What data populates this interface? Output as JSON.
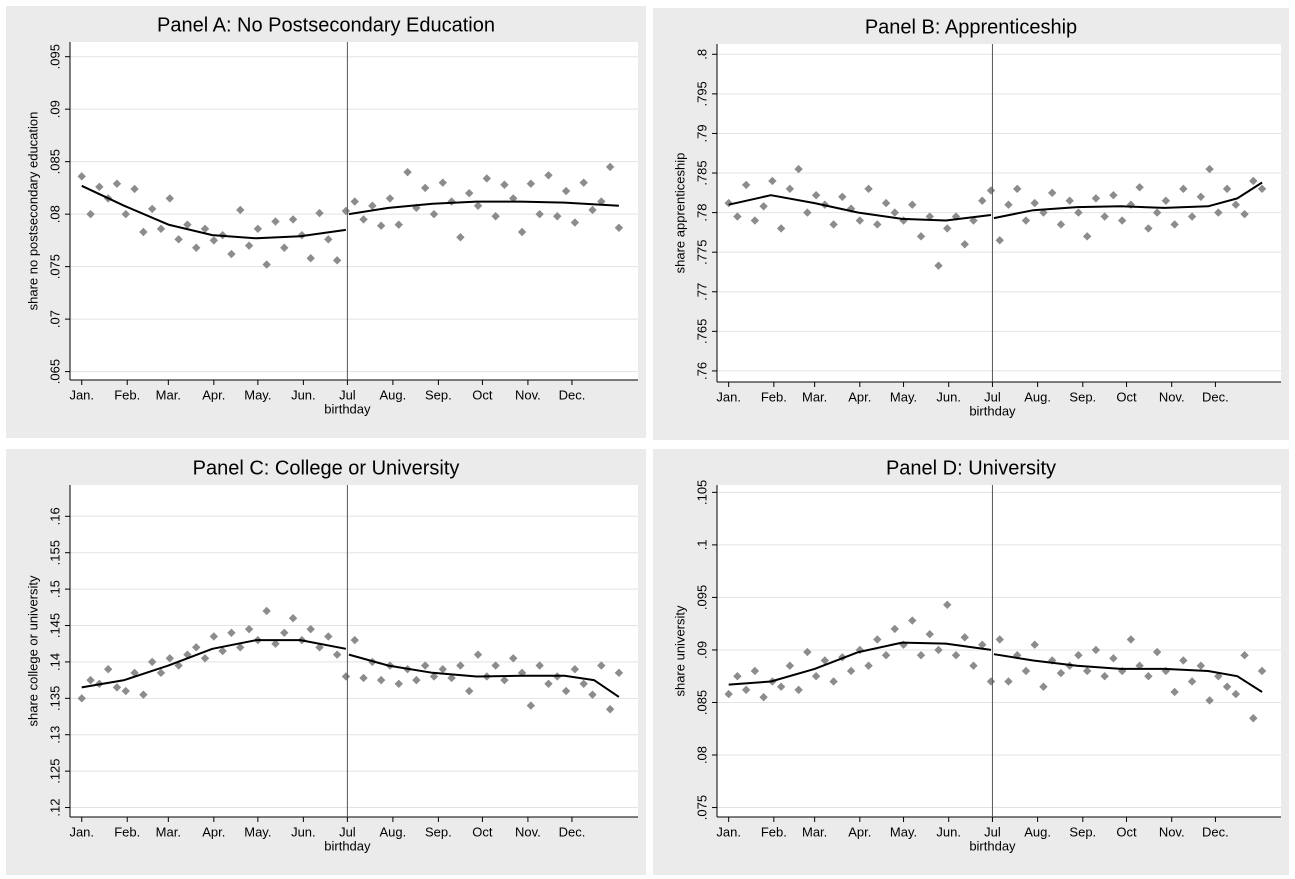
{
  "chart_data": [
    {
      "type": "scatter",
      "title": "Panel A: No Postsecondary Education",
      "x_label": "birthday",
      "y_label": "share no postsecondary education",
      "xlim": [
        -7,
        380
      ],
      "ylim": [
        0.0642,
        0.0964
      ],
      "xline": 182,
      "grid": true,
      "color": "#8c8c8c",
      "fit_color": "#000000",
      "xticks": [
        {
          "value": 1,
          "label": "Jan."
        },
        {
          "value": 32,
          "label": "Feb."
        },
        {
          "value": 60,
          "label": "Mar."
        },
        {
          "value": 91,
          "label": "Apr."
        },
        {
          "value": 121,
          "label": "May."
        },
        {
          "value": 152,
          "label": "Jun."
        },
        {
          "value": 182,
          "label": "Jul"
        },
        {
          "value": 213,
          "label": "Aug."
        },
        {
          "value": 244,
          "label": "Sep."
        },
        {
          "value": 274,
          "label": "Oct"
        },
        {
          "value": 305,
          "label": "Nov."
        },
        {
          "value": 335,
          "label": "Dec."
        }
      ],
      "yticks": [
        {
          "value": 0.065,
          "label": ".065"
        },
        {
          "value": 0.07,
          "label": ".07"
        },
        {
          "value": 0.075,
          "label": ".075"
        },
        {
          "value": 0.08,
          "label": ".08"
        },
        {
          "value": 0.085,
          "label": ".085"
        },
        {
          "value": 0.09,
          "label": ".09"
        },
        {
          "value": 0.095,
          "label": ".095"
        }
      ],
      "x": [
        1,
        7,
        13,
        19,
        25,
        31,
        37,
        43,
        49,
        55,
        61,
        67,
        73,
        79,
        85,
        91,
        97,
        103,
        109,
        115,
        121,
        127,
        133,
        139,
        145,
        151,
        157,
        163,
        169,
        175,
        181,
        187,
        193,
        199,
        205,
        211,
        217,
        223,
        229,
        235,
        241,
        247,
        253,
        259,
        265,
        271,
        277,
        283,
        289,
        295,
        301,
        307,
        313,
        319,
        325,
        331,
        337,
        343,
        349,
        355,
        361,
        367
      ],
      "values": [
        0.0836,
        0.08,
        0.0826,
        0.0815,
        0.0829,
        0.08,
        0.0824,
        0.0783,
        0.0805,
        0.0786,
        0.0815,
        0.0776,
        0.079,
        0.0768,
        0.0786,
        0.0775,
        0.078,
        0.0762,
        0.0804,
        0.077,
        0.0786,
        0.0752,
        0.0793,
        0.0768,
        0.0795,
        0.078,
        0.0758,
        0.0801,
        0.0776,
        0.0756,
        0.0803,
        0.0812,
        0.0795,
        0.0808,
        0.0789,
        0.0815,
        0.079,
        0.084,
        0.0806,
        0.0825,
        0.08,
        0.083,
        0.0812,
        0.0778,
        0.082,
        0.0808,
        0.0834,
        0.0798,
        0.0828,
        0.0815,
        0.0783,
        0.0829,
        0.08,
        0.0837,
        0.0798,
        0.0822,
        0.0792,
        0.083,
        0.0804,
        0.0812,
        0.0845,
        0.0787
      ],
      "fit_x": [
        1,
        30,
        60,
        90,
        120,
        150,
        181,
        182,
        183,
        210,
        240,
        270,
        300,
        330,
        367
      ],
      "fit_values": [
        0.0827,
        0.0808,
        0.079,
        0.078,
        0.0777,
        0.0779,
        0.0785,
        null,
        0.08,
        0.0806,
        0.081,
        0.0812,
        0.0812,
        0.0811,
        0.0808
      ]
    },
    {
      "type": "scatter",
      "title": "Panel B: Apprenticeship",
      "x_label": "birthday",
      "y_label": "share apprenticeship",
      "xlim": [
        -7,
        380
      ],
      "ylim": [
        0.7586,
        0.8013
      ],
      "xline": 182,
      "grid": true,
      "color": "#8c8c8c",
      "fit_color": "#000000",
      "xticks": [
        {
          "value": 1,
          "label": "Jan."
        },
        {
          "value": 32,
          "label": "Feb."
        },
        {
          "value": 60,
          "label": "Mar."
        },
        {
          "value": 91,
          "label": "Apr."
        },
        {
          "value": 121,
          "label": "May."
        },
        {
          "value": 152,
          "label": "Jun."
        },
        {
          "value": 182,
          "label": "Jul"
        },
        {
          "value": 213,
          "label": "Aug."
        },
        {
          "value": 244,
          "label": "Sep."
        },
        {
          "value": 274,
          "label": "Oct"
        },
        {
          "value": 305,
          "label": "Nov."
        },
        {
          "value": 335,
          "label": "Dec."
        }
      ],
      "yticks": [
        {
          "value": 0.76,
          "label": ".76"
        },
        {
          "value": 0.765,
          "label": ".765"
        },
        {
          "value": 0.77,
          "label": ".77"
        },
        {
          "value": 0.775,
          "label": ".775"
        },
        {
          "value": 0.78,
          "label": ".78"
        },
        {
          "value": 0.785,
          "label": ".785"
        },
        {
          "value": 0.79,
          "label": ".79"
        },
        {
          "value": 0.795,
          "label": ".795"
        },
        {
          "value": 0.8,
          "label": ".8"
        }
      ],
      "x": [
        1,
        7,
        13,
        19,
        25,
        31,
        37,
        43,
        49,
        55,
        61,
        67,
        73,
        79,
        85,
        91,
        97,
        103,
        109,
        115,
        121,
        127,
        133,
        139,
        145,
        151,
        157,
        163,
        169,
        175,
        181,
        187,
        193,
        199,
        205,
        211,
        217,
        223,
        229,
        235,
        241,
        247,
        253,
        259,
        265,
        271,
        277,
        283,
        289,
        295,
        301,
        307,
        313,
        319,
        325,
        331,
        337,
        343,
        349,
        355,
        361,
        367
      ],
      "values": [
        0.7812,
        0.7795,
        0.7835,
        0.779,
        0.7808,
        0.784,
        0.778,
        0.783,
        0.7855,
        0.78,
        0.7822,
        0.781,
        0.7785,
        0.782,
        0.7805,
        0.779,
        0.783,
        0.7785,
        0.7812,
        0.78,
        0.779,
        0.781,
        0.777,
        0.7795,
        0.7733,
        0.778,
        0.7795,
        0.776,
        0.779,
        0.7815,
        0.7828,
        0.7765,
        0.781,
        0.783,
        0.779,
        0.7812,
        0.78,
        0.7825,
        0.7785,
        0.7815,
        0.78,
        0.777,
        0.7818,
        0.7795,
        0.7822,
        0.779,
        0.781,
        0.7832,
        0.778,
        0.78,
        0.7815,
        0.7785,
        0.783,
        0.7795,
        0.782,
        0.7855,
        0.78,
        0.783,
        0.781,
        0.7798,
        0.784,
        0.783
      ],
      "fit_x": [
        1,
        30,
        60,
        90,
        120,
        150,
        181,
        182,
        183,
        210,
        240,
        270,
        300,
        330,
        350,
        367
      ],
      "fit_values": [
        0.781,
        0.7822,
        0.7812,
        0.78,
        0.7792,
        0.779,
        0.7797,
        null,
        0.7793,
        0.7803,
        0.7807,
        0.7808,
        0.7806,
        0.7808,
        0.7818,
        0.7838
      ]
    },
    {
      "type": "scatter",
      "title": "Panel C: College or University",
      "x_label": "birthday",
      "y_label": "share college or university",
      "xlim": [
        -7,
        380
      ],
      "ylim": [
        0.1187,
        0.1643
      ],
      "xline": 182,
      "grid": true,
      "color": "#8c8c8c",
      "fit_color": "#000000",
      "xticks": [
        {
          "value": 1,
          "label": "Jan."
        },
        {
          "value": 32,
          "label": "Feb."
        },
        {
          "value": 60,
          "label": "Mar."
        },
        {
          "value": 91,
          "label": "Apr."
        },
        {
          "value": 121,
          "label": "May."
        },
        {
          "value": 152,
          "label": "Jun."
        },
        {
          "value": 182,
          "label": "Jul"
        },
        {
          "value": 213,
          "label": "Aug."
        },
        {
          "value": 244,
          "label": "Sep."
        },
        {
          "value": 274,
          "label": "Oct"
        },
        {
          "value": 305,
          "label": "Nov."
        },
        {
          "value": 335,
          "label": "Dec."
        }
      ],
      "yticks": [
        {
          "value": 0.12,
          "label": ".12"
        },
        {
          "value": 0.125,
          "label": ".125"
        },
        {
          "value": 0.13,
          "label": ".13"
        },
        {
          "value": 0.135,
          "label": ".135"
        },
        {
          "value": 0.14,
          "label": ".14"
        },
        {
          "value": 0.145,
          "label": ".145"
        },
        {
          "value": 0.15,
          "label": ".15"
        },
        {
          "value": 0.155,
          "label": ".155"
        },
        {
          "value": 0.16,
          "label": ".16"
        }
      ],
      "x": [
        1,
        7,
        13,
        19,
        25,
        31,
        37,
        43,
        49,
        55,
        61,
        67,
        73,
        79,
        85,
        91,
        97,
        103,
        109,
        115,
        121,
        127,
        133,
        139,
        145,
        151,
        157,
        163,
        169,
        175,
        181,
        187,
        193,
        199,
        205,
        211,
        217,
        223,
        229,
        235,
        241,
        247,
        253,
        259,
        265,
        271,
        277,
        283,
        289,
        295,
        301,
        307,
        313,
        319,
        325,
        331,
        337,
        343,
        349,
        355,
        361,
        367
      ],
      "values": [
        0.135,
        0.1375,
        0.137,
        0.139,
        0.1365,
        0.136,
        0.1385,
        0.1355,
        0.14,
        0.1385,
        0.1405,
        0.1395,
        0.141,
        0.142,
        0.1405,
        0.1435,
        0.1415,
        0.144,
        0.142,
        0.1445,
        0.143,
        0.147,
        0.1425,
        0.144,
        0.146,
        0.143,
        0.1445,
        0.142,
        0.1435,
        0.141,
        0.138,
        0.143,
        0.1378,
        0.14,
        0.1375,
        0.1395,
        0.137,
        0.139,
        0.1375,
        0.1395,
        0.138,
        0.139,
        0.1378,
        0.1395,
        0.136,
        0.141,
        0.138,
        0.1395,
        0.1375,
        0.1405,
        0.1385,
        0.134,
        0.1395,
        0.137,
        0.138,
        0.136,
        0.139,
        0.137,
        0.1355,
        0.1395,
        0.1335,
        0.1385
      ],
      "fit_x": [
        1,
        30,
        60,
        90,
        120,
        150,
        181,
        182,
        183,
        210,
        240,
        270,
        300,
        330,
        350,
        367
      ],
      "fit_values": [
        0.1365,
        0.1375,
        0.1395,
        0.1418,
        0.143,
        0.143,
        0.1418,
        null,
        0.141,
        0.1395,
        0.1385,
        0.138,
        0.1381,
        0.1381,
        0.1375,
        0.1352
      ]
    },
    {
      "type": "scatter",
      "title": "Panel D: University",
      "x_label": "birthday",
      "y_label": "share university",
      "xlim": [
        -7,
        380
      ],
      "ylim": [
        0.0741,
        0.1057
      ],
      "xline": 182,
      "grid": true,
      "color": "#8c8c8c",
      "fit_color": "#000000",
      "xticks": [
        {
          "value": 1,
          "label": "Jan."
        },
        {
          "value": 32,
          "label": "Feb."
        },
        {
          "value": 60,
          "label": "Mar."
        },
        {
          "value": 91,
          "label": "Apr."
        },
        {
          "value": 121,
          "label": "May."
        },
        {
          "value": 152,
          "label": "Jun."
        },
        {
          "value": 182,
          "label": "Jul"
        },
        {
          "value": 213,
          "label": "Aug."
        },
        {
          "value": 244,
          "label": "Sep."
        },
        {
          "value": 274,
          "label": "Oct"
        },
        {
          "value": 305,
          "label": "Nov."
        },
        {
          "value": 335,
          "label": "Dec."
        }
      ],
      "yticks": [
        {
          "value": 0.075,
          "label": ".075"
        },
        {
          "value": 0.08,
          "label": ".08"
        },
        {
          "value": 0.085,
          "label": ".085"
        },
        {
          "value": 0.09,
          "label": ".09"
        },
        {
          "value": 0.095,
          "label": ".095"
        },
        {
          "value": 0.1,
          "label": ".1"
        },
        {
          "value": 0.105,
          "label": ".105"
        }
      ],
      "x": [
        1,
        7,
        13,
        19,
        25,
        31,
        37,
        43,
        49,
        55,
        61,
        67,
        73,
        79,
        85,
        91,
        97,
        103,
        109,
        115,
        121,
        127,
        133,
        139,
        145,
        151,
        157,
        163,
        169,
        175,
        181,
        187,
        193,
        199,
        205,
        211,
        217,
        223,
        229,
        235,
        241,
        247,
        253,
        259,
        265,
        271,
        277,
        283,
        289,
        295,
        301,
        307,
        313,
        319,
        325,
        331,
        337,
        343,
        349,
        355,
        361,
        367
      ],
      "values": [
        0.0858,
        0.0875,
        0.0862,
        0.088,
        0.0855,
        0.087,
        0.0865,
        0.0885,
        0.0862,
        0.0898,
        0.0875,
        0.089,
        0.087,
        0.0893,
        0.088,
        0.09,
        0.0885,
        0.091,
        0.0895,
        0.092,
        0.0905,
        0.0928,
        0.0895,
        0.0915,
        0.09,
        0.0943,
        0.0895,
        0.0912,
        0.0885,
        0.0905,
        0.087,
        0.091,
        0.087,
        0.0895,
        0.088,
        0.0905,
        0.0865,
        0.089,
        0.0878,
        0.0885,
        0.0895,
        0.088,
        0.09,
        0.0875,
        0.0892,
        0.088,
        0.091,
        0.0885,
        0.0875,
        0.0898,
        0.088,
        0.086,
        0.089,
        0.087,
        0.0885,
        0.0852,
        0.0875,
        0.0865,
        0.0858,
        0.0895,
        0.0835,
        0.088
      ],
      "fit_x": [
        1,
        30,
        60,
        90,
        120,
        150,
        181,
        182,
        183,
        210,
        240,
        270,
        300,
        330,
        350,
        367
      ],
      "fit_values": [
        0.0867,
        0.087,
        0.0882,
        0.0898,
        0.0907,
        0.0906,
        0.09,
        null,
        0.0896,
        0.089,
        0.0885,
        0.0882,
        0.0882,
        0.088,
        0.0875,
        0.086
      ]
    }
  ]
}
